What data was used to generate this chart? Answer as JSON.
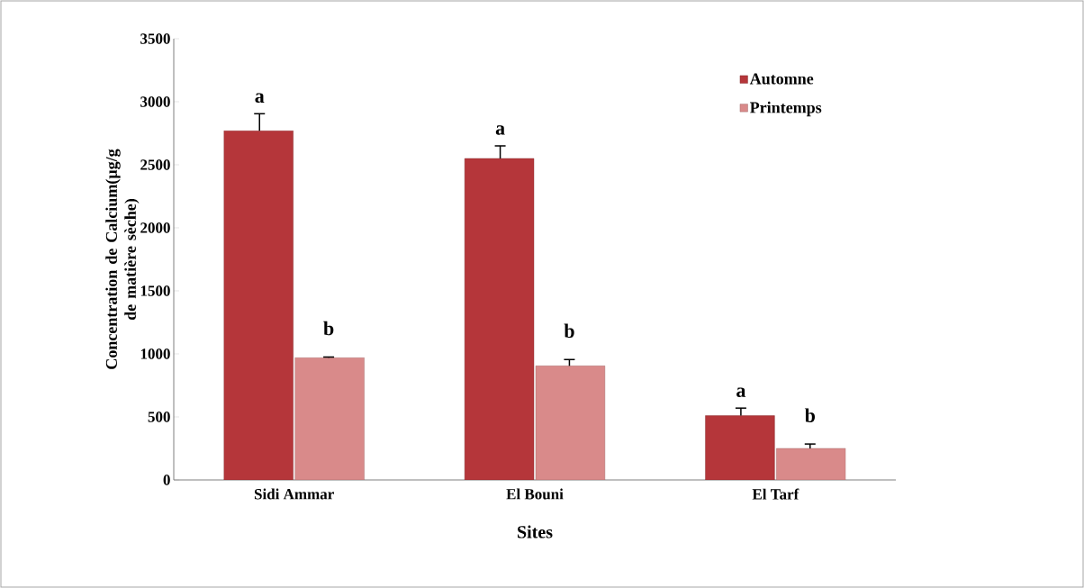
{
  "chart_data": {
    "type": "bar",
    "xlabel": "Sites",
    "ylabel": "Concentration de Calcium(µg/g de matière sèche)",
    "categories": [
      "Sidi Ammar",
      "El Bouni",
      "El Tarf"
    ],
    "series": [
      {
        "name": "Automne",
        "color": "#b5363a",
        "values": [
          2770,
          2550,
          510
        ],
        "errors": [
          [
            2770,
            2905
          ],
          [
            2550,
            2650
          ],
          [
            510,
            570
          ]
        ]
      },
      {
        "name": "Printemps",
        "color": "#d98a8a",
        "values": [
          970,
          905,
          250
        ],
        "errors": [
          [
            970,
            975
          ],
          [
            905,
            955
          ],
          [
            250,
            285
          ]
        ]
      }
    ],
    "ylim": [
      0,
      3500
    ],
    "yticks": [
      0,
      500,
      1000,
      1500,
      2000,
      2500,
      3000,
      3500
    ],
    "grid": false,
    "legend": "top right",
    "annotations": [
      "a",
      "b",
      "a",
      "b",
      "a",
      "b"
    ]
  }
}
